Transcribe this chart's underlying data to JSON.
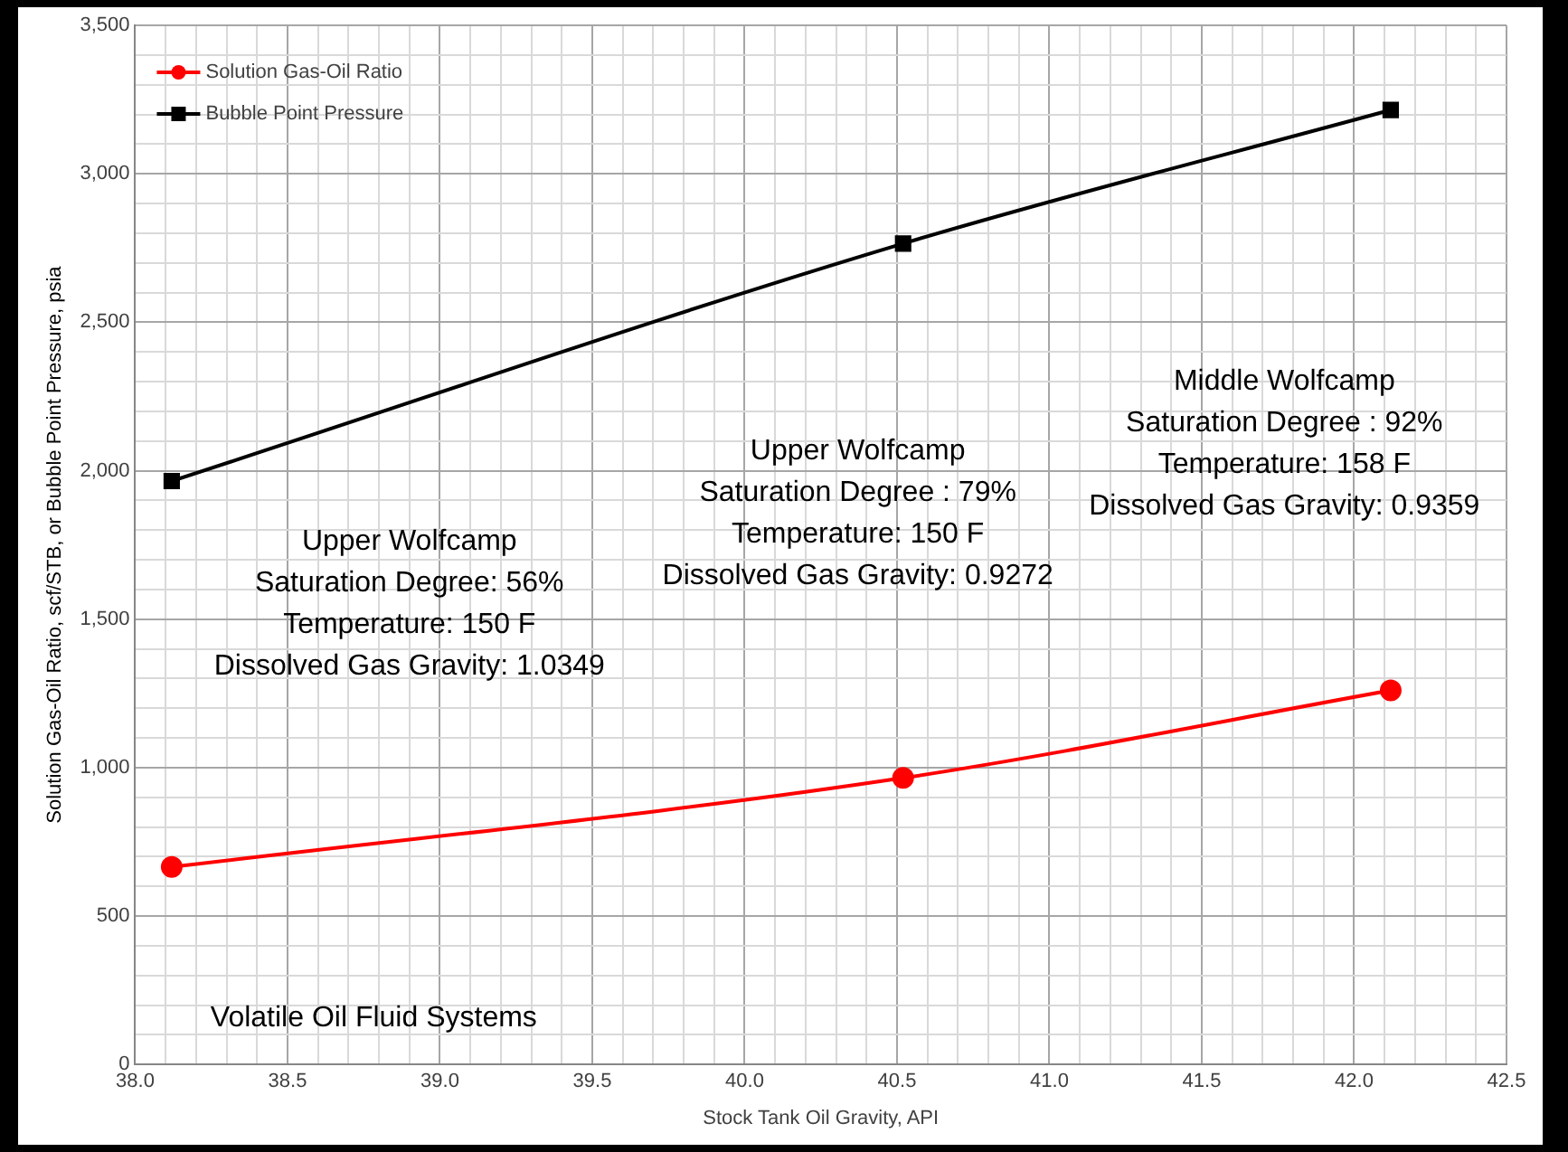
{
  "chart_data": {
    "type": "line",
    "xlabel": "Stock Tank Oil Gravity, API",
    "ylabel": "Solution Gas-Oil Ratio, scf/STB, or Bubble Point Pressure, psia",
    "x": [
      38.12,
      40.52,
      42.12
    ],
    "series": [
      {
        "name": "Solution Gas-Oil Ratio",
        "color": "#ff0000",
        "marker": "circle",
        "values": [
          665,
          965,
          1260
        ]
      },
      {
        "name": "Bubble Point Pressure",
        "color": "#000000",
        "marker": "square",
        "values": [
          1965,
          2765,
          3215
        ]
      }
    ],
    "xlim": [
      38,
      42.5
    ],
    "ylim": [
      0,
      3500
    ],
    "xticks": [
      {
        "value": 38,
        "label": "38.0"
      },
      {
        "value": 38.1,
        "label": null
      },
      {
        "value": 38.2,
        "label": null
      },
      {
        "value": 38.3,
        "label": null
      },
      {
        "value": 38.4,
        "label": null
      },
      {
        "value": 38.5,
        "label": "38.5"
      },
      {
        "value": 38.6,
        "label": null
      },
      {
        "value": 38.7,
        "label": null
      },
      {
        "value": 38.8,
        "label": null
      },
      {
        "value": 38.9,
        "label": null
      },
      {
        "value": 39,
        "label": "39.0"
      },
      {
        "value": 39.1,
        "label": null
      },
      {
        "value": 39.2,
        "label": null
      },
      {
        "value": 39.3,
        "label": null
      },
      {
        "value": 39.4,
        "label": null
      },
      {
        "value": 39.5,
        "label": "39.5"
      },
      {
        "value": 39.6,
        "label": null
      },
      {
        "value": 39.7,
        "label": null
      },
      {
        "value": 39.8,
        "label": null
      },
      {
        "value": 39.9,
        "label": null
      },
      {
        "value": 40,
        "label": "40.0"
      },
      {
        "value": 40.1,
        "label": null
      },
      {
        "value": 40.2,
        "label": null
      },
      {
        "value": 40.3,
        "label": null
      },
      {
        "value": 40.4,
        "label": null
      },
      {
        "value": 40.5,
        "label": "40.5"
      },
      {
        "value": 40.6,
        "label": null
      },
      {
        "value": 40.7,
        "label": null
      },
      {
        "value": 40.8,
        "label": null
      },
      {
        "value": 40.9,
        "label": null
      },
      {
        "value": 41,
        "label": "41.0"
      },
      {
        "value": 41.1,
        "label": null
      },
      {
        "value": 41.2,
        "label": null
      },
      {
        "value": 41.3,
        "label": null
      },
      {
        "value": 41.4,
        "label": null
      },
      {
        "value": 41.5,
        "label": "41.5"
      },
      {
        "value": 41.6,
        "label": null
      },
      {
        "value": 41.7,
        "label": null
      },
      {
        "value": 41.8,
        "label": null
      },
      {
        "value": 41.9,
        "label": null
      },
      {
        "value": 42,
        "label": "42.0"
      },
      {
        "value": 42.1,
        "label": null
      },
      {
        "value": 42.2,
        "label": null
      },
      {
        "value": 42.3,
        "label": null
      },
      {
        "value": 42.4,
        "label": null
      },
      {
        "value": 42.5,
        "label": "42.5"
      }
    ],
    "yticks": [
      0,
      {
        "value": 100,
        "label": null
      },
      {
        "value": 200,
        "label": null
      },
      {
        "value": 300,
        "label": null
      },
      {
        "value": 400,
        "label": null
      },
      500,
      {
        "value": 600,
        "label": null
      },
      {
        "value": 700,
        "label": null
      },
      {
        "value": 800,
        "label": null
      },
      {
        "value": 900,
        "label": null
      },
      {
        "value": 1000,
        "label": "1,000"
      },
      {
        "value": 1100,
        "label": null
      },
      {
        "value": 1200,
        "label": null
      },
      {
        "value": 1300,
        "label": null
      },
      {
        "value": 1400,
        "label": null
      },
      {
        "value": 1500,
        "label": "1,500"
      },
      {
        "value": 1600,
        "label": null
      },
      {
        "value": 1700,
        "label": null
      },
      {
        "value": 1800,
        "label": null
      },
      {
        "value": 1900,
        "label": null
      },
      {
        "value": 2000,
        "label": "2,000"
      },
      {
        "value": 2100,
        "label": null
      },
      {
        "value": 2200,
        "label": null
      },
      {
        "value": 2300,
        "label": null
      },
      {
        "value": 2400,
        "label": null
      },
      {
        "value": 2500,
        "label": "2,500"
      },
      {
        "value": 2600,
        "label": null
      },
      {
        "value": 2700,
        "label": null
      },
      {
        "value": 2800,
        "label": null
      },
      {
        "value": 2900,
        "label": null
      },
      {
        "value": 3000,
        "label": "3,000"
      },
      {
        "value": 3100,
        "label": null
      },
      {
        "value": 3200,
        "label": null
      },
      {
        "value": 3300,
        "label": null
      },
      {
        "value": 3400,
        "label": null
      },
      {
        "value": 3500,
        "label": "3,500"
      }
    ],
    "grid": true,
    "legend": "top left",
    "line_style": "solid",
    "annotations": [
      "Upper Wolfcamp\nSaturation Degree: 56%\nTemperature: 150 F\nDissolved Gas Gravity: 1.0349",
      "Upper Wolfcamp\nSaturation Degree : 79%\nTemperature: 150 F\nDissolved Gas Gravity: 0.9272",
      "Middle Wolfcamp\nSaturation Degree : 92%\nTemperature: 158 F\nDissolved Gas Gravity: 0.9359",
      "Volatile Oil Fluid Systems"
    ]
  }
}
